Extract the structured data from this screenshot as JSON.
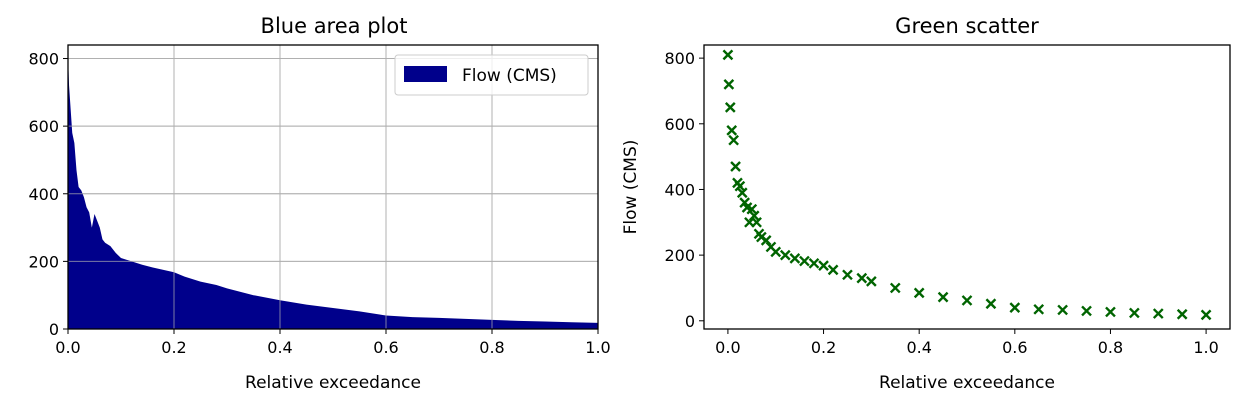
{
  "chart_data": [
    {
      "type": "area",
      "title": "Blue area plot",
      "xlabel": "Relative exceedance",
      "ylabel": "",
      "xlim": [
        0,
        1.0
      ],
      "ylim": [
        0,
        840
      ],
      "grid": true,
      "legend_position": "top-right",
      "x_ticks": [
        "0.0",
        "0.2",
        "0.4",
        "0.6",
        "0.8",
        "1.0"
      ],
      "y_ticks": [
        "0",
        "200",
        "400",
        "600",
        "800"
      ],
      "color": "#00008b",
      "series": [
        {
          "name": "Flow (CMS)",
          "x": [
            0,
            0.002,
            0.005,
            0.008,
            0.012,
            0.016,
            0.02,
            0.025,
            0.03,
            0.035,
            0.04,
            0.045,
            0.05,
            0.055,
            0.06,
            0.065,
            0.07,
            0.08,
            0.09,
            0.1,
            0.12,
            0.14,
            0.16,
            0.18,
            0.2,
            0.22,
            0.25,
            0.28,
            0.3,
            0.35,
            0.4,
            0.45,
            0.5,
            0.55,
            0.6,
            0.65,
            0.7,
            0.75,
            0.8,
            0.85,
            0.9,
            0.95,
            1.0
          ],
          "y": [
            810,
            720,
            650,
            580,
            550,
            470,
            420,
            410,
            390,
            360,
            345,
            300,
            340,
            320,
            300,
            265,
            255,
            245,
            225,
            210,
            200,
            190,
            182,
            175,
            168,
            155,
            140,
            130,
            120,
            100,
            85,
            72,
            62,
            52,
            40,
            35,
            33,
            30,
            27,
            24,
            22,
            20,
            18
          ]
        }
      ]
    },
    {
      "type": "scatter",
      "title": "Green scatter",
      "xlabel": "Relative exceedance",
      "ylabel": "Flow (CMS)",
      "xlim": [
        -0.05,
        1.05
      ],
      "ylim": [
        -25,
        840
      ],
      "grid": false,
      "x_ticks": [
        "0.0",
        "0.2",
        "0.4",
        "0.6",
        "0.8",
        "1.0"
      ],
      "y_ticks": [
        "0",
        "200",
        "400",
        "600",
        "800"
      ],
      "color": "#006400",
      "marker": "x",
      "series": [
        {
          "x": [
            0,
            0.002,
            0.005,
            0.008,
            0.012,
            0.016,
            0.02,
            0.025,
            0.03,
            0.035,
            0.04,
            0.045,
            0.05,
            0.055,
            0.06,
            0.065,
            0.07,
            0.08,
            0.09,
            0.1,
            0.12,
            0.14,
            0.16,
            0.18,
            0.2,
            0.22,
            0.25,
            0.28,
            0.3,
            0.35,
            0.4,
            0.45,
            0.5,
            0.55,
            0.6,
            0.65,
            0.7,
            0.75,
            0.8,
            0.85,
            0.9,
            0.95,
            1.0
          ],
          "y": [
            810,
            720,
            650,
            580,
            550,
            470,
            420,
            410,
            390,
            360,
            345,
            300,
            340,
            320,
            300,
            265,
            255,
            245,
            225,
            210,
            200,
            190,
            182,
            175,
            168,
            155,
            140,
            130,
            120,
            100,
            85,
            72,
            62,
            52,
            40,
            35,
            33,
            30,
            27,
            24,
            22,
            20,
            18
          ]
        }
      ]
    }
  ]
}
